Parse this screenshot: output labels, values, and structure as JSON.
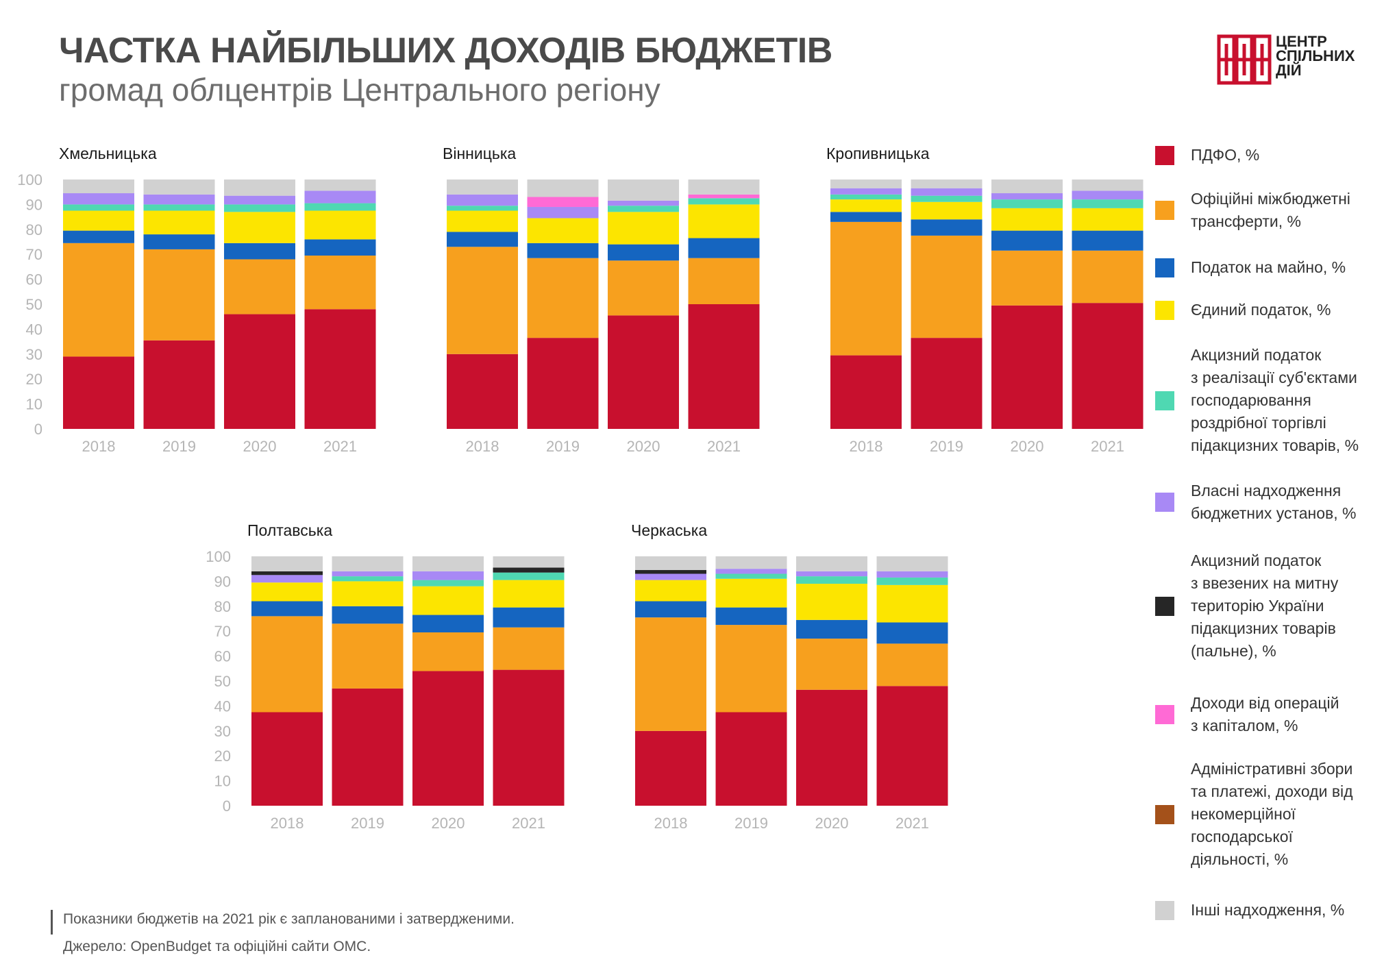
{
  "header": {
    "title": "ЧАСТКА НАЙБІЛЬШИХ ДОХОДІВ БЮДЖЕТІВ",
    "subtitle": "громад облцентрів Центрального регіону"
  },
  "logo": {
    "line1": "ЦЕНТР",
    "line2": "СПІЛЬНИХ",
    "line3": "ДІЙ",
    "color": "#c8102e"
  },
  "footer": {
    "note": "Показники бюджетів на 2021 рік є запланованими і затвердженими.",
    "source": "Джерело: OpenBudget та офіційні сайти ОМС."
  },
  "legend": [
    {
      "label": "ПДФО, %",
      "color": "#c8102e"
    },
    {
      "label": "Офіційні міжбюджетні\nтрансферти, %",
      "color": "#f7a01e"
    },
    {
      "label": "Податок на майно, %",
      "color": "#1565c0"
    },
    {
      "label": "Єдиний податок, %",
      "color": "#fce500"
    },
    {
      "label": "Акцизний податок\nз реалізації суб'єктами\nгосподарювання\nроздрібної торгівлі\nпідакцизних товарів, %",
      "color": "#4fd8b2"
    },
    {
      "label": "Власні надходження\nбюджетних установ, %",
      "color": "#a889f5"
    },
    {
      "label": "Акцизний податок\nз ввезених на митну\nтериторію України\nпідакцизних товарів\n(пальне), %",
      "color": "#262626"
    },
    {
      "label": "Доходи від операцій\nз капіталом, %",
      "color": "#ff6ad5"
    },
    {
      "label": "Адміністративні збори\nта платежі, доходи від\nнекомерційної\nгосподарської\nдіяльності, %",
      "color": "#a4511a"
    },
    {
      "label": "Інші надходження, %",
      "color": "#d1d1d1"
    }
  ],
  "chart_data": [
    {
      "type": "bar",
      "stacked": true,
      "title": "Хмельницька",
      "categories": [
        "2018",
        "2019",
        "2020",
        "2021"
      ],
      "ylim": [
        0,
        100
      ],
      "yticks": [
        0,
        10,
        20,
        30,
        40,
        50,
        60,
        70,
        80,
        90,
        100
      ],
      "series": [
        {
          "name": "ПДФО, %",
          "values": [
            29,
            35.5,
            46,
            48
          ]
        },
        {
          "name": "Офіційні міжбюджетні трансферти, %",
          "values": [
            45.5,
            36.5,
            22,
            21.5
          ]
        },
        {
          "name": "Податок на майно, %",
          "values": [
            5,
            6,
            6.5,
            6.5
          ]
        },
        {
          "name": "Єдиний податок, %",
          "values": [
            8,
            9.5,
            12.5,
            11.5
          ]
        },
        {
          "name": "Акцизний податок з реалізації суб'єктами господарювання роздрібної торгівлі підакцизних товарів, %",
          "values": [
            2.5,
            2.5,
            3,
            3
          ]
        },
        {
          "name": "Власні надходження бюджетних установ, %",
          "values": [
            4.5,
            4,
            3.5,
            5
          ]
        },
        {
          "name": "Акцизний податок з ввезених на митну територію України підакцизних товарів (пальне), %",
          "values": [
            0,
            0,
            0,
            0
          ]
        },
        {
          "name": "Доходи від операцій з капіталом, %",
          "values": [
            0,
            0,
            0,
            0
          ]
        },
        {
          "name": "Адміністративні збори та платежі, доходи від некомерційної господарської діяльності, %",
          "values": [
            0,
            0,
            0,
            0
          ]
        },
        {
          "name": "Інші надходження, %",
          "values": [
            5.5,
            6,
            6.5,
            4.5
          ]
        }
      ]
    },
    {
      "type": "bar",
      "stacked": true,
      "title": "Вінницька",
      "categories": [
        "2018",
        "2019",
        "2020",
        "2021"
      ],
      "ylim": [
        0,
        100
      ],
      "yticks": [],
      "series": [
        {
          "name": "ПДФО, %",
          "values": [
            30,
            36.5,
            45.5,
            50
          ]
        },
        {
          "name": "Офіційні міжбюджетні трансферти, %",
          "values": [
            43,
            32,
            22,
            18.5
          ]
        },
        {
          "name": "Податок на майно, %",
          "values": [
            6,
            6,
            6.5,
            8
          ]
        },
        {
          "name": "Єдиний податок, %",
          "values": [
            8.5,
            10,
            13,
            13.5
          ]
        },
        {
          "name": "Акцизний податок з реалізації суб'єктами господарювання роздрібної торгівлі підакцизних товарів, %",
          "values": [
            2,
            0,
            2.5,
            2.5
          ]
        },
        {
          "name": "Власні надходження бюджетних установ, %",
          "values": [
            4.5,
            4.5,
            2,
            0
          ]
        },
        {
          "name": "Акцизний податок з ввезених на митну територію України підакцизних товарів (пальне), %",
          "values": [
            0,
            0,
            0,
            0
          ]
        },
        {
          "name": "Доходи від операцій з капіталом, %",
          "values": [
            0,
            4,
            0,
            1.5
          ]
        },
        {
          "name": "Адміністративні збори та платежі, доходи від некомерційної господарської діяльності, %",
          "values": [
            0,
            0,
            0,
            0
          ]
        },
        {
          "name": "Інші надходження, %",
          "values": [
            6,
            7,
            8.5,
            6
          ]
        }
      ]
    },
    {
      "type": "bar",
      "stacked": true,
      "title": "Кропивницька",
      "categories": [
        "2018",
        "2019",
        "2020",
        "2021"
      ],
      "ylim": [
        0,
        100
      ],
      "yticks": [],
      "series": [
        {
          "name": "ПДФО, %",
          "values": [
            29.5,
            36.5,
            49.5,
            50.5
          ]
        },
        {
          "name": "Офіційні міжбюджетні трансферти, %",
          "values": [
            53.5,
            41,
            22,
            21
          ]
        },
        {
          "name": "Податок на майно, %",
          "values": [
            4,
            6.5,
            8,
            8
          ]
        },
        {
          "name": "Єдиний податок, %",
          "values": [
            5,
            7,
            9,
            9
          ]
        },
        {
          "name": "Акцизний податок з реалізації суб'єктами господарювання роздрібної торгівлі підакцизних товарів, %",
          "values": [
            2,
            2.5,
            3.5,
            3.5
          ]
        },
        {
          "name": "Власні надходження бюджетних установ, %",
          "values": [
            2.5,
            3,
            2.5,
            3.5
          ]
        },
        {
          "name": "Акцизний податок з ввезених на митну територію України підакцизних товарів (пальне), %",
          "values": [
            0,
            0,
            0,
            0
          ]
        },
        {
          "name": "Доходи від операцій з капіталом, %",
          "values": [
            0,
            0,
            0,
            0
          ]
        },
        {
          "name": "Адміністративні збори та платежі, доходи від некомерційної господарської діяльності, %",
          "values": [
            0,
            0,
            0,
            0
          ]
        },
        {
          "name": "Інші надходження, %",
          "values": [
            3.5,
            3.5,
            5.5,
            4.5
          ]
        }
      ]
    },
    {
      "type": "bar",
      "stacked": true,
      "title": "Полтавська",
      "categories": [
        "2018",
        "2019",
        "2020",
        "2021"
      ],
      "ylim": [
        0,
        100
      ],
      "yticks": [
        0,
        10,
        20,
        30,
        40,
        50,
        60,
        70,
        80,
        90,
        100
      ],
      "series": [
        {
          "name": "ПДФО, %",
          "values": [
            37.5,
            47,
            54,
            54.5
          ]
        },
        {
          "name": "Офіційні міжбюджетні трансферти, %",
          "values": [
            38.5,
            26,
            15.5,
            17
          ]
        },
        {
          "name": "Податок на майно, %",
          "values": [
            6,
            7,
            7,
            8
          ]
        },
        {
          "name": "Єдиний податок, %",
          "values": [
            7.5,
            10,
            11.5,
            11
          ]
        },
        {
          "name": "Акцизний податок з реалізації суб'єктами господарювання роздрібної торгівлі підакцизних товарів, %",
          "values": [
            0,
            2,
            2.5,
            3
          ]
        },
        {
          "name": "Власні надходження бюджетних установ, %",
          "values": [
            3,
            2,
            3.5,
            0
          ]
        },
        {
          "name": "Акцизний податок з ввезених на митну територію України підакцизних товарів (пальне), %",
          "values": [
            1.5,
            0,
            0,
            2
          ]
        },
        {
          "name": "Доходи від операцій з капіталом, %",
          "values": [
            0,
            0,
            0,
            0
          ]
        },
        {
          "name": "Адміністративні збори та платежі, доходи від некомерційної господарської діяльності, %",
          "values": [
            0,
            0,
            0,
            0
          ]
        },
        {
          "name": "Інші надходження, %",
          "values": [
            6,
            6,
            6,
            4.5
          ]
        }
      ]
    },
    {
      "type": "bar",
      "stacked": true,
      "title": "Черкаська",
      "categories": [
        "2018",
        "2019",
        "2020",
        "2021"
      ],
      "ylim": [
        0,
        100
      ],
      "yticks": [],
      "series": [
        {
          "name": "ПДФО, %",
          "values": [
            30,
            37.5,
            46.5,
            48
          ]
        },
        {
          "name": "Офіційні міжбюджетні трансферти, %",
          "values": [
            45.5,
            35,
            20.5,
            17
          ]
        },
        {
          "name": "Податок на майно, %",
          "values": [
            6.5,
            7,
            7.5,
            8.5
          ]
        },
        {
          "name": "Єдиний податок, %",
          "values": [
            8.5,
            11.5,
            14.5,
            15
          ]
        },
        {
          "name": "Акцизний податок з реалізації суб'єктами господарювання роздрібної торгівлі підакцизних товарів, %",
          "values": [
            0,
            2,
            3,
            3
          ]
        },
        {
          "name": "Власні надходження бюджетних установ, %",
          "values": [
            2.5,
            2,
            2,
            2.5
          ]
        },
        {
          "name": "Акцизний податок з ввезених на митну територію України підакцизних товарів (пальне), %",
          "values": [
            1.5,
            0,
            0,
            0
          ]
        },
        {
          "name": "Доходи від операцій з капіталом, %",
          "values": [
            0,
            0,
            0,
            0
          ]
        },
        {
          "name": "Адміністративні збори та платежі, доходи від некомерційної господарської діяльності, %",
          "values": [
            0,
            0,
            0,
            0
          ]
        },
        {
          "name": "Інші надходження, %",
          "values": [
            5.5,
            5,
            6,
            6
          ]
        }
      ]
    }
  ]
}
